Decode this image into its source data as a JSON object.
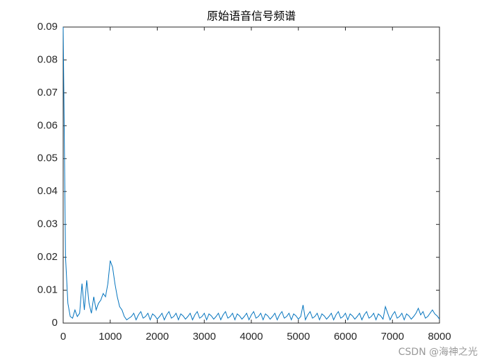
{
  "chart_data": {
    "type": "line",
    "title": "原始语音信号频谱",
    "x": [
      0,
      50,
      100,
      150,
      200,
      250,
      300,
      350,
      400,
      450,
      500,
      550,
      600,
      650,
      700,
      750,
      800,
      850,
      900,
      950,
      1000,
      1050,
      1100,
      1150,
      1200,
      1250,
      1300,
      1350,
      1400,
      1450,
      1500,
      1550,
      1600,
      1650,
      1700,
      1750,
      1800,
      1850,
      1900,
      1950,
      2000,
      2050,
      2100,
      2150,
      2200,
      2250,
      2300,
      2350,
      2400,
      2450,
      2500,
      2550,
      2600,
      2650,
      2700,
      2750,
      2800,
      2850,
      2900,
      2950,
      3000,
      3050,
      3100,
      3150,
      3200,
      3250,
      3300,
      3350,
      3400,
      3450,
      3500,
      3550,
      3600,
      3650,
      3700,
      3750,
      3800,
      3850,
      3900,
      3950,
      4000,
      4050,
      4100,
      4150,
      4200,
      4250,
      4300,
      4350,
      4400,
      4450,
      4500,
      4550,
      4600,
      4650,
      4700,
      4750,
      4800,
      4850,
      4900,
      4950,
      5000,
      5050,
      5100,
      5150,
      5200,
      5250,
      5300,
      5350,
      5400,
      5450,
      5500,
      5550,
      5600,
      5650,
      5700,
      5750,
      5800,
      5850,
      5900,
      5950,
      6000,
      6050,
      6100,
      6150,
      6200,
      6250,
      6300,
      6350,
      6400,
      6450,
      6500,
      6550,
      6600,
      6650,
      6700,
      6750,
      6800,
      6850,
      6900,
      6950,
      7000,
      7050,
      7100,
      7150,
      7200,
      7250,
      7300,
      7350,
      7400,
      7450,
      7500,
      7550,
      7600,
      7650,
      7700,
      7750,
      7800,
      7850,
      7900,
      7950,
      8000
    ],
    "series": [
      {
        "color": "#0072bd",
        "values": [
          0.09,
          0.02,
          0.006,
          0.002,
          0.0015,
          0.004,
          0.002,
          0.003,
          0.012,
          0.004,
          0.013,
          0.006,
          0.003,
          0.008,
          0.004,
          0.006,
          0.007,
          0.009,
          0.008,
          0.012,
          0.019,
          0.017,
          0.012,
          0.008,
          0.005,
          0.004,
          0.002,
          0.001,
          0.0015,
          0.002,
          0.003,
          0.001,
          0.0025,
          0.0035,
          0.0015,
          0.002,
          0.003,
          0.001,
          0.0028,
          0.0022,
          0.0012,
          0.002,
          0.003,
          0.001,
          0.0025,
          0.0035,
          0.0015,
          0.002,
          0.003,
          0.001,
          0.0028,
          0.0022,
          0.0012,
          0.002,
          0.003,
          0.001,
          0.0025,
          0.0035,
          0.0015,
          0.002,
          0.003,
          0.001,
          0.0028,
          0.0022,
          0.0012,
          0.002,
          0.003,
          0.001,
          0.0025,
          0.0035,
          0.0015,
          0.002,
          0.003,
          0.001,
          0.0028,
          0.0022,
          0.0012,
          0.002,
          0.003,
          0.001,
          0.0025,
          0.0035,
          0.0015,
          0.002,
          0.003,
          0.001,
          0.0028,
          0.0022,
          0.0012,
          0.002,
          0.003,
          0.001,
          0.0025,
          0.0035,
          0.0015,
          0.002,
          0.003,
          0.001,
          0.0028,
          0.0022,
          0.0012,
          0.002,
          0.0055,
          0.001,
          0.0025,
          0.0035,
          0.0015,
          0.002,
          0.003,
          0.001,
          0.0028,
          0.0022,
          0.0012,
          0.002,
          0.003,
          0.001,
          0.0025,
          0.0035,
          0.0015,
          0.002,
          0.003,
          0.001,
          0.0028,
          0.0022,
          0.0012,
          0.002,
          0.003,
          0.001,
          0.0025,
          0.0035,
          0.0015,
          0.002,
          0.003,
          0.001,
          0.0028,
          0.0022,
          0.0012,
          0.005,
          0.003,
          0.001,
          0.0025,
          0.0035,
          0.0015,
          0.002,
          0.003,
          0.001,
          0.0028,
          0.0022,
          0.0012,
          0.002,
          0.003,
          0.0045,
          0.0025,
          0.0035,
          0.0015,
          0.002,
          0.003,
          0.004,
          0.0028,
          0.0022,
          0.0012
        ]
      }
    ],
    "xlim": [
      0,
      8000
    ],
    "xticks": [
      0,
      1000,
      2000,
      3000,
      4000,
      5000,
      6000,
      7000,
      8000
    ],
    "ylim": [
      0,
      0.09
    ],
    "yticks": [
      0,
      0.01,
      0.02,
      0.03,
      0.04,
      0.05,
      0.06,
      0.07,
      0.08,
      0.09
    ],
    "grid": false
  },
  "watermark": "CSDN @海神之光"
}
